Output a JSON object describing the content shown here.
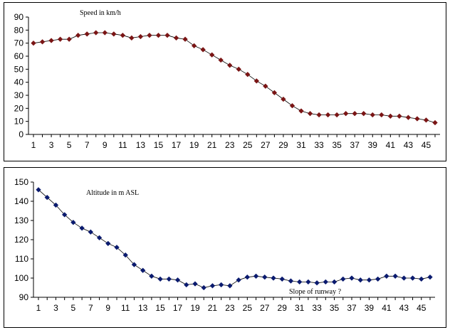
{
  "chart_data": [
    {
      "type": "line",
      "title": "Speed in km/h",
      "categories": [
        1,
        2,
        3,
        4,
        5,
        6,
        7,
        8,
        9,
        10,
        11,
        12,
        13,
        14,
        15,
        16,
        17,
        18,
        19,
        20,
        21,
        22,
        23,
        24,
        25,
        26,
        27,
        28,
        29,
        30,
        31,
        32,
        33,
        34,
        35,
        36,
        37,
        38,
        39,
        40,
        41,
        42,
        43,
        44,
        45,
        46
      ],
      "x_tick_labels": [
        "1",
        "3",
        "5",
        "7",
        "9",
        "11",
        "13",
        "15",
        "17",
        "19",
        "21",
        "23",
        "25",
        "27",
        "29",
        "31",
        "33",
        "35",
        "37",
        "39",
        "41",
        "43",
        "45"
      ],
      "series": [
        {
          "color": "#7a1515",
          "values": [
            70,
            71,
            72,
            73,
            73,
            76,
            77,
            78,
            78,
            77,
            76,
            74,
            75,
            76,
            76,
            76,
            74,
            73,
            68,
            65,
            61,
            57,
            53,
            50,
            46,
            41,
            37,
            32,
            27,
            22,
            18,
            16,
            15,
            15,
            15,
            16,
            16,
            16,
            15,
            15,
            14,
            14,
            13,
            12,
            11,
            9
          ]
        }
      ],
      "ylim": [
        0,
        90
      ],
      "yticks": [
        0,
        10,
        20,
        30,
        40,
        50,
        60,
        70,
        80,
        90
      ],
      "grid": false,
      "legend": "none"
    },
    {
      "type": "line",
      "title": "Altitude in m ASL",
      "annotation": "Slope of runway ?",
      "categories": [
        1,
        2,
        3,
        4,
        5,
        6,
        7,
        8,
        9,
        10,
        11,
        12,
        13,
        14,
        15,
        16,
        17,
        18,
        19,
        20,
        21,
        22,
        23,
        24,
        25,
        26,
        27,
        28,
        29,
        30,
        31,
        32,
        33,
        34,
        35,
        36,
        37,
        38,
        39,
        40,
        41,
        42,
        43,
        44,
        45,
        46
      ],
      "x_tick_labels": [
        "1",
        "3",
        "5",
        "7",
        "9",
        "11",
        "13",
        "15",
        "17",
        "19",
        "21",
        "23",
        "25",
        "27",
        "29",
        "31",
        "33",
        "35",
        "37",
        "39",
        "41",
        "43",
        "45"
      ],
      "series": [
        {
          "color": "#0a1a6e",
          "values": [
            146,
            142,
            138,
            133,
            129,
            126,
            124,
            121,
            118,
            116,
            112,
            107,
            104,
            101,
            99.5,
            99.5,
            99,
            96.5,
            97,
            95,
            96,
            96.5,
            96,
            99,
            100.5,
            101,
            100.5,
            100,
            99.5,
            98.5,
            98,
            98,
            97.5,
            98,
            98,
            99.5,
            100,
            99,
            99,
            99.5,
            101,
            101,
            100,
            100,
            99.5,
            100.5
          ]
        }
      ],
      "ylim": [
        90,
        150
      ],
      "yticks": [
        90,
        100,
        110,
        120,
        130,
        140,
        150
      ],
      "grid": false,
      "legend": "none"
    }
  ]
}
